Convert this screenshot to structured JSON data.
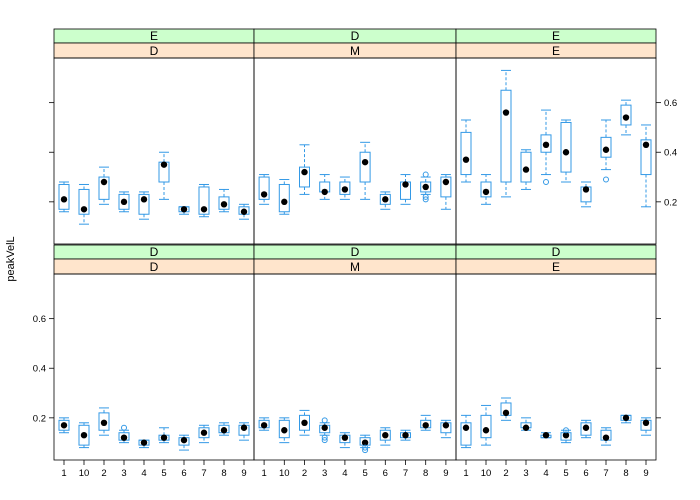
{
  "chart_data": {
    "type": "boxplot",
    "ylabel": "peakVelL",
    "y_ticks": [
      "0.2",
      "0.4",
      "0.6"
    ],
    "y_tick_values": [
      0.2,
      0.4,
      0.6
    ],
    "ylim": [
      0.03,
      0.78
    ],
    "categories": [
      "1",
      "10",
      "2",
      "3",
      "4",
      "5",
      "6",
      "7",
      "8",
      "9"
    ],
    "colors": {
      "box": "#3399e6",
      "median": "#000000",
      "strip_outer": "#ccffcc",
      "strip_inner": "#ffe5cc"
    },
    "panels": [
      {
        "outer": "E",
        "inner": "D",
        "boxes": [
          {
            "min": 0.16,
            "q1": 0.17,
            "med": 0.21,
            "q3": 0.27,
            "max": 0.28,
            "out": []
          },
          {
            "min": 0.11,
            "q1": 0.15,
            "med": 0.17,
            "q3": 0.25,
            "max": 0.27,
            "out": []
          },
          {
            "min": 0.19,
            "q1": 0.21,
            "med": 0.28,
            "q3": 0.3,
            "max": 0.34,
            "out": []
          },
          {
            "min": 0.16,
            "q1": 0.17,
            "med": 0.2,
            "q3": 0.23,
            "max": 0.24,
            "out": []
          },
          {
            "min": 0.13,
            "q1": 0.15,
            "med": 0.21,
            "q3": 0.23,
            "max": 0.24,
            "out": []
          },
          {
            "min": 0.21,
            "q1": 0.28,
            "med": 0.35,
            "q3": 0.36,
            "max": 0.4,
            "out": []
          },
          {
            "min": 0.15,
            "q1": 0.16,
            "med": 0.17,
            "q3": 0.18,
            "max": 0.18,
            "out": []
          },
          {
            "min": 0.14,
            "q1": 0.15,
            "med": 0.17,
            "q3": 0.26,
            "max": 0.27,
            "out": []
          },
          {
            "min": 0.16,
            "q1": 0.17,
            "med": 0.19,
            "q3": 0.22,
            "max": 0.25,
            "out": []
          },
          {
            "min": 0.13,
            "q1": 0.15,
            "med": 0.16,
            "q3": 0.18,
            "max": 0.19,
            "out": []
          }
        ]
      },
      {
        "outer": "D",
        "inner": "M",
        "boxes": [
          {
            "min": 0.19,
            "q1": 0.21,
            "med": 0.23,
            "q3": 0.3,
            "max": 0.31,
            "out": []
          },
          {
            "min": 0.15,
            "q1": 0.16,
            "med": 0.2,
            "q3": 0.27,
            "max": 0.29,
            "out": []
          },
          {
            "min": 0.23,
            "q1": 0.26,
            "med": 0.32,
            "q3": 0.34,
            "max": 0.43,
            "out": []
          },
          {
            "min": 0.21,
            "q1": 0.24,
            "med": 0.24,
            "q3": 0.28,
            "max": 0.31,
            "out": []
          },
          {
            "min": 0.21,
            "q1": 0.23,
            "med": 0.25,
            "q3": 0.28,
            "max": 0.3,
            "out": []
          },
          {
            "min": 0.21,
            "q1": 0.28,
            "med": 0.36,
            "q3": 0.4,
            "max": 0.44,
            "out": []
          },
          {
            "min": 0.17,
            "q1": 0.19,
            "med": 0.21,
            "q3": 0.23,
            "max": 0.24,
            "out": []
          },
          {
            "min": 0.19,
            "q1": 0.21,
            "med": 0.27,
            "q3": 0.28,
            "max": 0.31,
            "out": []
          },
          {
            "min": 0.23,
            "q1": 0.24,
            "med": 0.26,
            "q3": 0.28,
            "max": 0.3,
            "out": [
              0.21,
              0.22,
              0.31
            ]
          },
          {
            "min": 0.17,
            "q1": 0.22,
            "med": 0.28,
            "q3": 0.3,
            "max": 0.31,
            "out": []
          }
        ]
      },
      {
        "outer": "E",
        "inner": "E",
        "boxes": [
          {
            "min": 0.28,
            "q1": 0.31,
            "med": 0.37,
            "q3": 0.48,
            "max": 0.53,
            "out": []
          },
          {
            "min": 0.19,
            "q1": 0.22,
            "med": 0.24,
            "q3": 0.28,
            "max": 0.31,
            "out": []
          },
          {
            "min": 0.22,
            "q1": 0.28,
            "med": 0.56,
            "q3": 0.65,
            "max": 0.73,
            "out": []
          },
          {
            "min": 0.25,
            "q1": 0.28,
            "med": 0.33,
            "q3": 0.4,
            "max": 0.41,
            "out": []
          },
          {
            "min": 0.31,
            "q1": 0.4,
            "med": 0.43,
            "q3": 0.47,
            "max": 0.57,
            "out": [
              0.28
            ]
          },
          {
            "min": 0.28,
            "q1": 0.32,
            "med": 0.4,
            "q3": 0.52,
            "max": 0.53,
            "out": []
          },
          {
            "min": 0.18,
            "q1": 0.2,
            "med": 0.25,
            "q3": 0.26,
            "max": 0.28,
            "out": []
          },
          {
            "min": 0.33,
            "q1": 0.38,
            "med": 0.41,
            "q3": 0.46,
            "max": 0.53,
            "out": [
              0.29
            ]
          },
          {
            "min": 0.47,
            "q1": 0.51,
            "med": 0.54,
            "q3": 0.59,
            "max": 0.61,
            "out": []
          },
          {
            "min": 0.18,
            "q1": 0.31,
            "med": 0.43,
            "q3": 0.45,
            "max": 0.51,
            "out": []
          }
        ]
      },
      {
        "outer": "D",
        "inner": "D",
        "boxes": [
          {
            "min": 0.14,
            "q1": 0.15,
            "med": 0.17,
            "q3": 0.19,
            "max": 0.2,
            "out": []
          },
          {
            "min": 0.08,
            "q1": 0.09,
            "med": 0.13,
            "q3": 0.17,
            "max": 0.18,
            "out": []
          },
          {
            "min": 0.13,
            "q1": 0.15,
            "med": 0.18,
            "q3": 0.22,
            "max": 0.24,
            "out": []
          },
          {
            "min": 0.1,
            "q1": 0.11,
            "med": 0.12,
            "q3": 0.14,
            "max": 0.15,
            "out": [
              0.16
            ]
          },
          {
            "min": 0.08,
            "q1": 0.09,
            "med": 0.1,
            "q3": 0.11,
            "max": 0.11,
            "out": []
          },
          {
            "min": 0.1,
            "q1": 0.11,
            "med": 0.12,
            "q3": 0.13,
            "max": 0.16,
            "out": []
          },
          {
            "min": 0.07,
            "q1": 0.09,
            "med": 0.11,
            "q3": 0.12,
            "max": 0.13,
            "out": []
          },
          {
            "min": 0.1,
            "q1": 0.12,
            "med": 0.14,
            "q3": 0.16,
            "max": 0.17,
            "out": []
          },
          {
            "min": 0.13,
            "q1": 0.14,
            "med": 0.15,
            "q3": 0.17,
            "max": 0.18,
            "out": []
          },
          {
            "min": 0.11,
            "q1": 0.13,
            "med": 0.16,
            "q3": 0.17,
            "max": 0.18,
            "out": []
          }
        ]
      },
      {
        "outer": "D",
        "inner": "M",
        "boxes": [
          {
            "min": 0.15,
            "q1": 0.16,
            "med": 0.17,
            "q3": 0.19,
            "max": 0.2,
            "out": []
          },
          {
            "min": 0.1,
            "q1": 0.12,
            "med": 0.15,
            "q3": 0.19,
            "max": 0.2,
            "out": []
          },
          {
            "min": 0.13,
            "q1": 0.15,
            "med": 0.18,
            "q3": 0.21,
            "max": 0.23,
            "out": []
          },
          {
            "min": 0.13,
            "q1": 0.14,
            "med": 0.16,
            "q3": 0.17,
            "max": 0.18,
            "out": [
              0.11,
              0.12,
              0.19
            ]
          },
          {
            "min": 0.08,
            "q1": 0.1,
            "med": 0.12,
            "q3": 0.13,
            "max": 0.14,
            "out": []
          },
          {
            "min": 0.08,
            "q1": 0.09,
            "med": 0.1,
            "q3": 0.12,
            "max": 0.13,
            "out": [
              0.07,
              0.08
            ]
          },
          {
            "min": 0.09,
            "q1": 0.11,
            "med": 0.13,
            "q3": 0.15,
            "max": 0.16,
            "out": []
          },
          {
            "min": 0.11,
            "q1": 0.12,
            "med": 0.13,
            "q3": 0.14,
            "max": 0.15,
            "out": []
          },
          {
            "min": 0.15,
            "q1": 0.16,
            "med": 0.17,
            "q3": 0.19,
            "max": 0.21,
            "out": []
          },
          {
            "min": 0.12,
            "q1": 0.14,
            "med": 0.17,
            "q3": 0.18,
            "max": 0.19,
            "out": []
          }
        ]
      },
      {
        "outer": "D",
        "inner": "E",
        "boxes": [
          {
            "min": 0.08,
            "q1": 0.09,
            "med": 0.16,
            "q3": 0.18,
            "max": 0.21,
            "out": []
          },
          {
            "min": 0.09,
            "q1": 0.12,
            "med": 0.15,
            "q3": 0.21,
            "max": 0.25,
            "out": []
          },
          {
            "min": 0.19,
            "q1": 0.21,
            "med": 0.22,
            "q3": 0.26,
            "max": 0.28,
            "out": []
          },
          {
            "min": 0.15,
            "q1": 0.16,
            "med": 0.16,
            "q3": 0.18,
            "max": 0.2,
            "out": []
          },
          {
            "min": 0.12,
            "q1": 0.12,
            "med": 0.13,
            "q3": 0.13,
            "max": 0.14,
            "out": []
          },
          {
            "min": 0.1,
            "q1": 0.11,
            "med": 0.13,
            "q3": 0.14,
            "max": 0.15,
            "out": [
              0.15
            ]
          },
          {
            "min": 0.12,
            "q1": 0.13,
            "med": 0.16,
            "q3": 0.18,
            "max": 0.19,
            "out": []
          },
          {
            "min": 0.09,
            "q1": 0.11,
            "med": 0.12,
            "q3": 0.15,
            "max": 0.16,
            "out": []
          },
          {
            "min": 0.18,
            "q1": 0.19,
            "med": 0.2,
            "q3": 0.21,
            "max": 0.21,
            "out": []
          },
          {
            "min": 0.13,
            "q1": 0.15,
            "med": 0.18,
            "q3": 0.19,
            "max": 0.2,
            "out": []
          }
        ]
      }
    ]
  }
}
